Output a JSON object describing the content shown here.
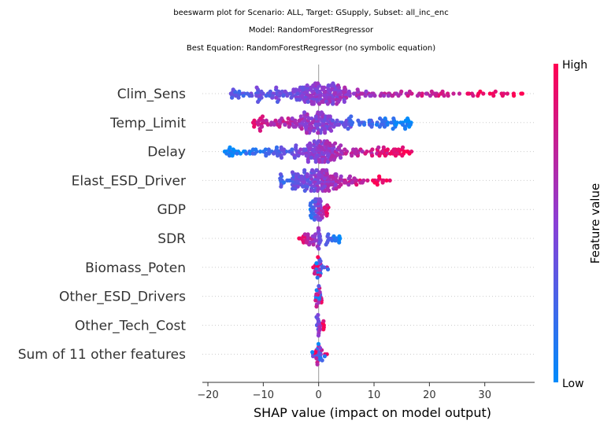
{
  "chart_data": {
    "type": "scatter",
    "subtype": "beeswarm",
    "title_lines": [
      "beeswarm plot for Scenario: ALL, Target: GSupply, Subset: all_inc_enc",
      "Model: RandomForestRegressor",
      "Best Equation: RandomForestRegressor (no symbolic equation)"
    ],
    "xlabel": "SHAP value (impact on model output)",
    "xlim": [
      -21,
      39
    ],
    "xticks": [
      -20,
      -10,
      0,
      10,
      20,
      30
    ],
    "xtick_labels": [
      "−20",
      "−10",
      "0",
      "10",
      "20",
      "30"
    ],
    "colorbar": {
      "title": "Feature value",
      "high_label": "High",
      "low_label": "Low",
      "high_color": "#ff0052",
      "low_color": "#008bfb"
    },
    "features": [
      {
        "name": "Clim_Sens",
        "min": -16,
        "max": 37,
        "spread": 9,
        "pattern": "pos_high",
        "density": 300
      },
      {
        "name": "Temp_Limit",
        "min": -12,
        "max": 17,
        "spread": 7,
        "pattern": "neg_high",
        "density": 220
      },
      {
        "name": "Delay",
        "min": -17,
        "max": 17,
        "spread": 7,
        "pattern": "pos_high",
        "density": 260
      },
      {
        "name": "Elast_ESD_Driver",
        "min": -7,
        "max": 13,
        "spread": 6,
        "pattern": "pos_high",
        "density": 220
      },
      {
        "name": "GDP",
        "min": -1.5,
        "max": 2,
        "spread": 1,
        "pattern": "pos_high",
        "density": 60
      },
      {
        "name": "SDR",
        "min": -4,
        "max": 4,
        "spread": 1,
        "pattern": "neg_high",
        "density": 60
      },
      {
        "name": "Biomass_Poten",
        "min": -1,
        "max": 1.7,
        "spread": 0.6,
        "pattern": "mixed",
        "density": 30
      },
      {
        "name": "Other_ESD_Drivers",
        "min": -0.6,
        "max": 0.6,
        "spread": 0.4,
        "pattern": "mixed",
        "density": 25
      },
      {
        "name": "Other_Tech_Cost",
        "min": -0.5,
        "max": 1,
        "spread": 0.4,
        "pattern": "pos_high",
        "density": 25
      },
      {
        "name": "Sum of 11 other features",
        "min": -1.2,
        "max": 1.5,
        "spread": 0.6,
        "pattern": "mixed",
        "density": 40
      }
    ]
  }
}
